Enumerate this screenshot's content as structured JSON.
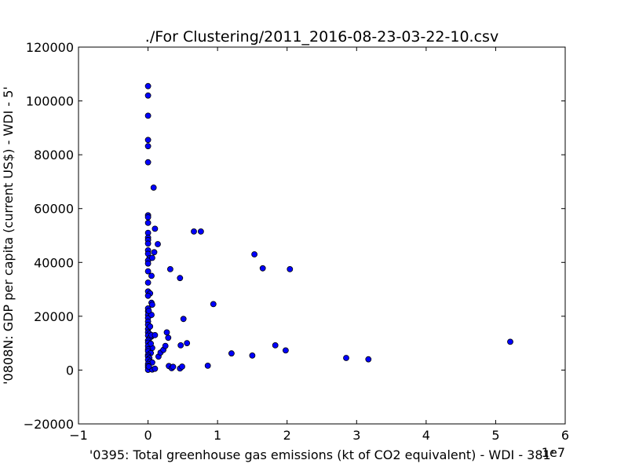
{
  "chart_data": {
    "type": "scatter",
    "title": "./For Clustering/2011_2016-08-23-03-22-10.csv",
    "xlabel": "'0395: Total greenhouse gas emissions  (kt of CO2 equivalent) - WDI - 381'",
    "ylabel": "'0808N: GDP per capita  (current US$) - WDI - 5'",
    "x_offset_label": "1e7",
    "xlim": [
      -1,
      6
    ],
    "ylim": [
      -20000,
      120000
    ],
    "x_ticks": [
      -1,
      0,
      1,
      2,
      3,
      4,
      5,
      6
    ],
    "y_ticks": [
      -20000,
      0,
      20000,
      40000,
      60000,
      80000,
      100000,
      120000
    ],
    "x_tick_labels": [
      "−1",
      "0",
      "1",
      "2",
      "3",
      "4",
      "5",
      "6"
    ],
    "y_tick_labels": [
      "−20000",
      "0",
      "20000",
      "40000",
      "60000",
      "80000",
      "100000",
      "120000"
    ],
    "grid": false,
    "marker_color": "#0000ff",
    "marker_edge": "#000000",
    "series": [
      {
        "points": [
          [
            0.0,
            105500
          ],
          [
            0.0,
            102000
          ],
          [
            0.0,
            94500
          ],
          [
            0.0,
            85500
          ],
          [
            0.0,
            83200
          ],
          [
            0.0,
            77200
          ],
          [
            0.08,
            67800
          ],
          [
            0.0,
            57500
          ],
          [
            0.0,
            56800
          ],
          [
            0.0,
            54700
          ],
          [
            0.0,
            51000
          ],
          [
            0.0,
            49200
          ],
          [
            0.0,
            48300
          ],
          [
            0.0,
            47000
          ],
          [
            0.0,
            44500
          ],
          [
            0.0,
            43200
          ],
          [
            0.02,
            41500
          ],
          [
            0.0,
            40700
          ],
          [
            0.0,
            39600
          ],
          [
            0.0,
            36700
          ],
          [
            0.05,
            35000
          ],
          [
            0.0,
            32500
          ],
          [
            0.0,
            29200
          ],
          [
            0.03,
            28500
          ],
          [
            0.0,
            27600
          ],
          [
            0.05,
            25000
          ],
          [
            0.06,
            24300
          ],
          [
            0.0,
            22900
          ],
          [
            0.0,
            21800
          ],
          [
            0.0,
            20500
          ],
          [
            0.0,
            19300
          ],
          [
            0.0,
            18000
          ],
          [
            0.0,
            16800
          ],
          [
            0.0,
            15200
          ],
          [
            0.0,
            14000
          ],
          [
            0.02,
            13500
          ],
          [
            0.0,
            12800
          ],
          [
            0.05,
            12500
          ],
          [
            0.02,
            11800
          ],
          [
            0.0,
            11000
          ],
          [
            0.0,
            10200
          ],
          [
            0.03,
            9600
          ],
          [
            0.0,
            8900
          ],
          [
            0.06,
            8200
          ],
          [
            0.0,
            7700
          ],
          [
            0.0,
            7000
          ],
          [
            0.04,
            6300
          ],
          [
            0.0,
            5600
          ],
          [
            0.0,
            5000
          ],
          [
            0.02,
            4400
          ],
          [
            0.0,
            3800
          ],
          [
            0.03,
            3200
          ],
          [
            0.06,
            2800
          ],
          [
            0.0,
            2300
          ],
          [
            0.0,
            1600
          ],
          [
            0.0,
            1000
          ],
          [
            0.02,
            500
          ],
          [
            0.0,
            100
          ],
          [
            0.06,
            200
          ],
          [
            0.01,
            1300
          ],
          [
            0.04,
            9800
          ],
          [
            0.05,
            13000
          ],
          [
            0.03,
            16200
          ],
          [
            0.05,
            20500
          ],
          [
            0.01,
            22000
          ],
          [
            0.1,
            52500
          ],
          [
            0.14,
            46800
          ],
          [
            0.09,
            43800
          ],
          [
            0.06,
            41700
          ],
          [
            0.1,
            13000
          ],
          [
            0.1,
            500
          ],
          [
            0.15,
            5000
          ],
          [
            0.18,
            6500
          ],
          [
            0.22,
            7500
          ],
          [
            0.25,
            9000
          ],
          [
            0.27,
            14000
          ],
          [
            0.29,
            12000
          ],
          [
            0.3,
            1500
          ],
          [
            0.32,
            37500
          ],
          [
            0.34,
            700
          ],
          [
            0.36,
            1200
          ],
          [
            0.46,
            34200
          ],
          [
            0.46,
            600
          ],
          [
            0.47,
            9200
          ],
          [
            0.49,
            1300
          ],
          [
            0.51,
            19000
          ],
          [
            0.56,
            10000
          ],
          [
            0.66,
            51500
          ],
          [
            0.76,
            51500
          ],
          [
            0.86,
            1600
          ],
          [
            0.94,
            24500
          ],
          [
            1.2,
            6200
          ],
          [
            1.5,
            5400
          ],
          [
            1.53,
            43000
          ],
          [
            1.65,
            37800
          ],
          [
            1.83,
            9200
          ],
          [
            1.98,
            7300
          ],
          [
            2.04,
            37500
          ],
          [
            2.85,
            4500
          ],
          [
            3.17,
            4000
          ],
          [
            5.21,
            10500
          ]
        ]
      }
    ]
  }
}
